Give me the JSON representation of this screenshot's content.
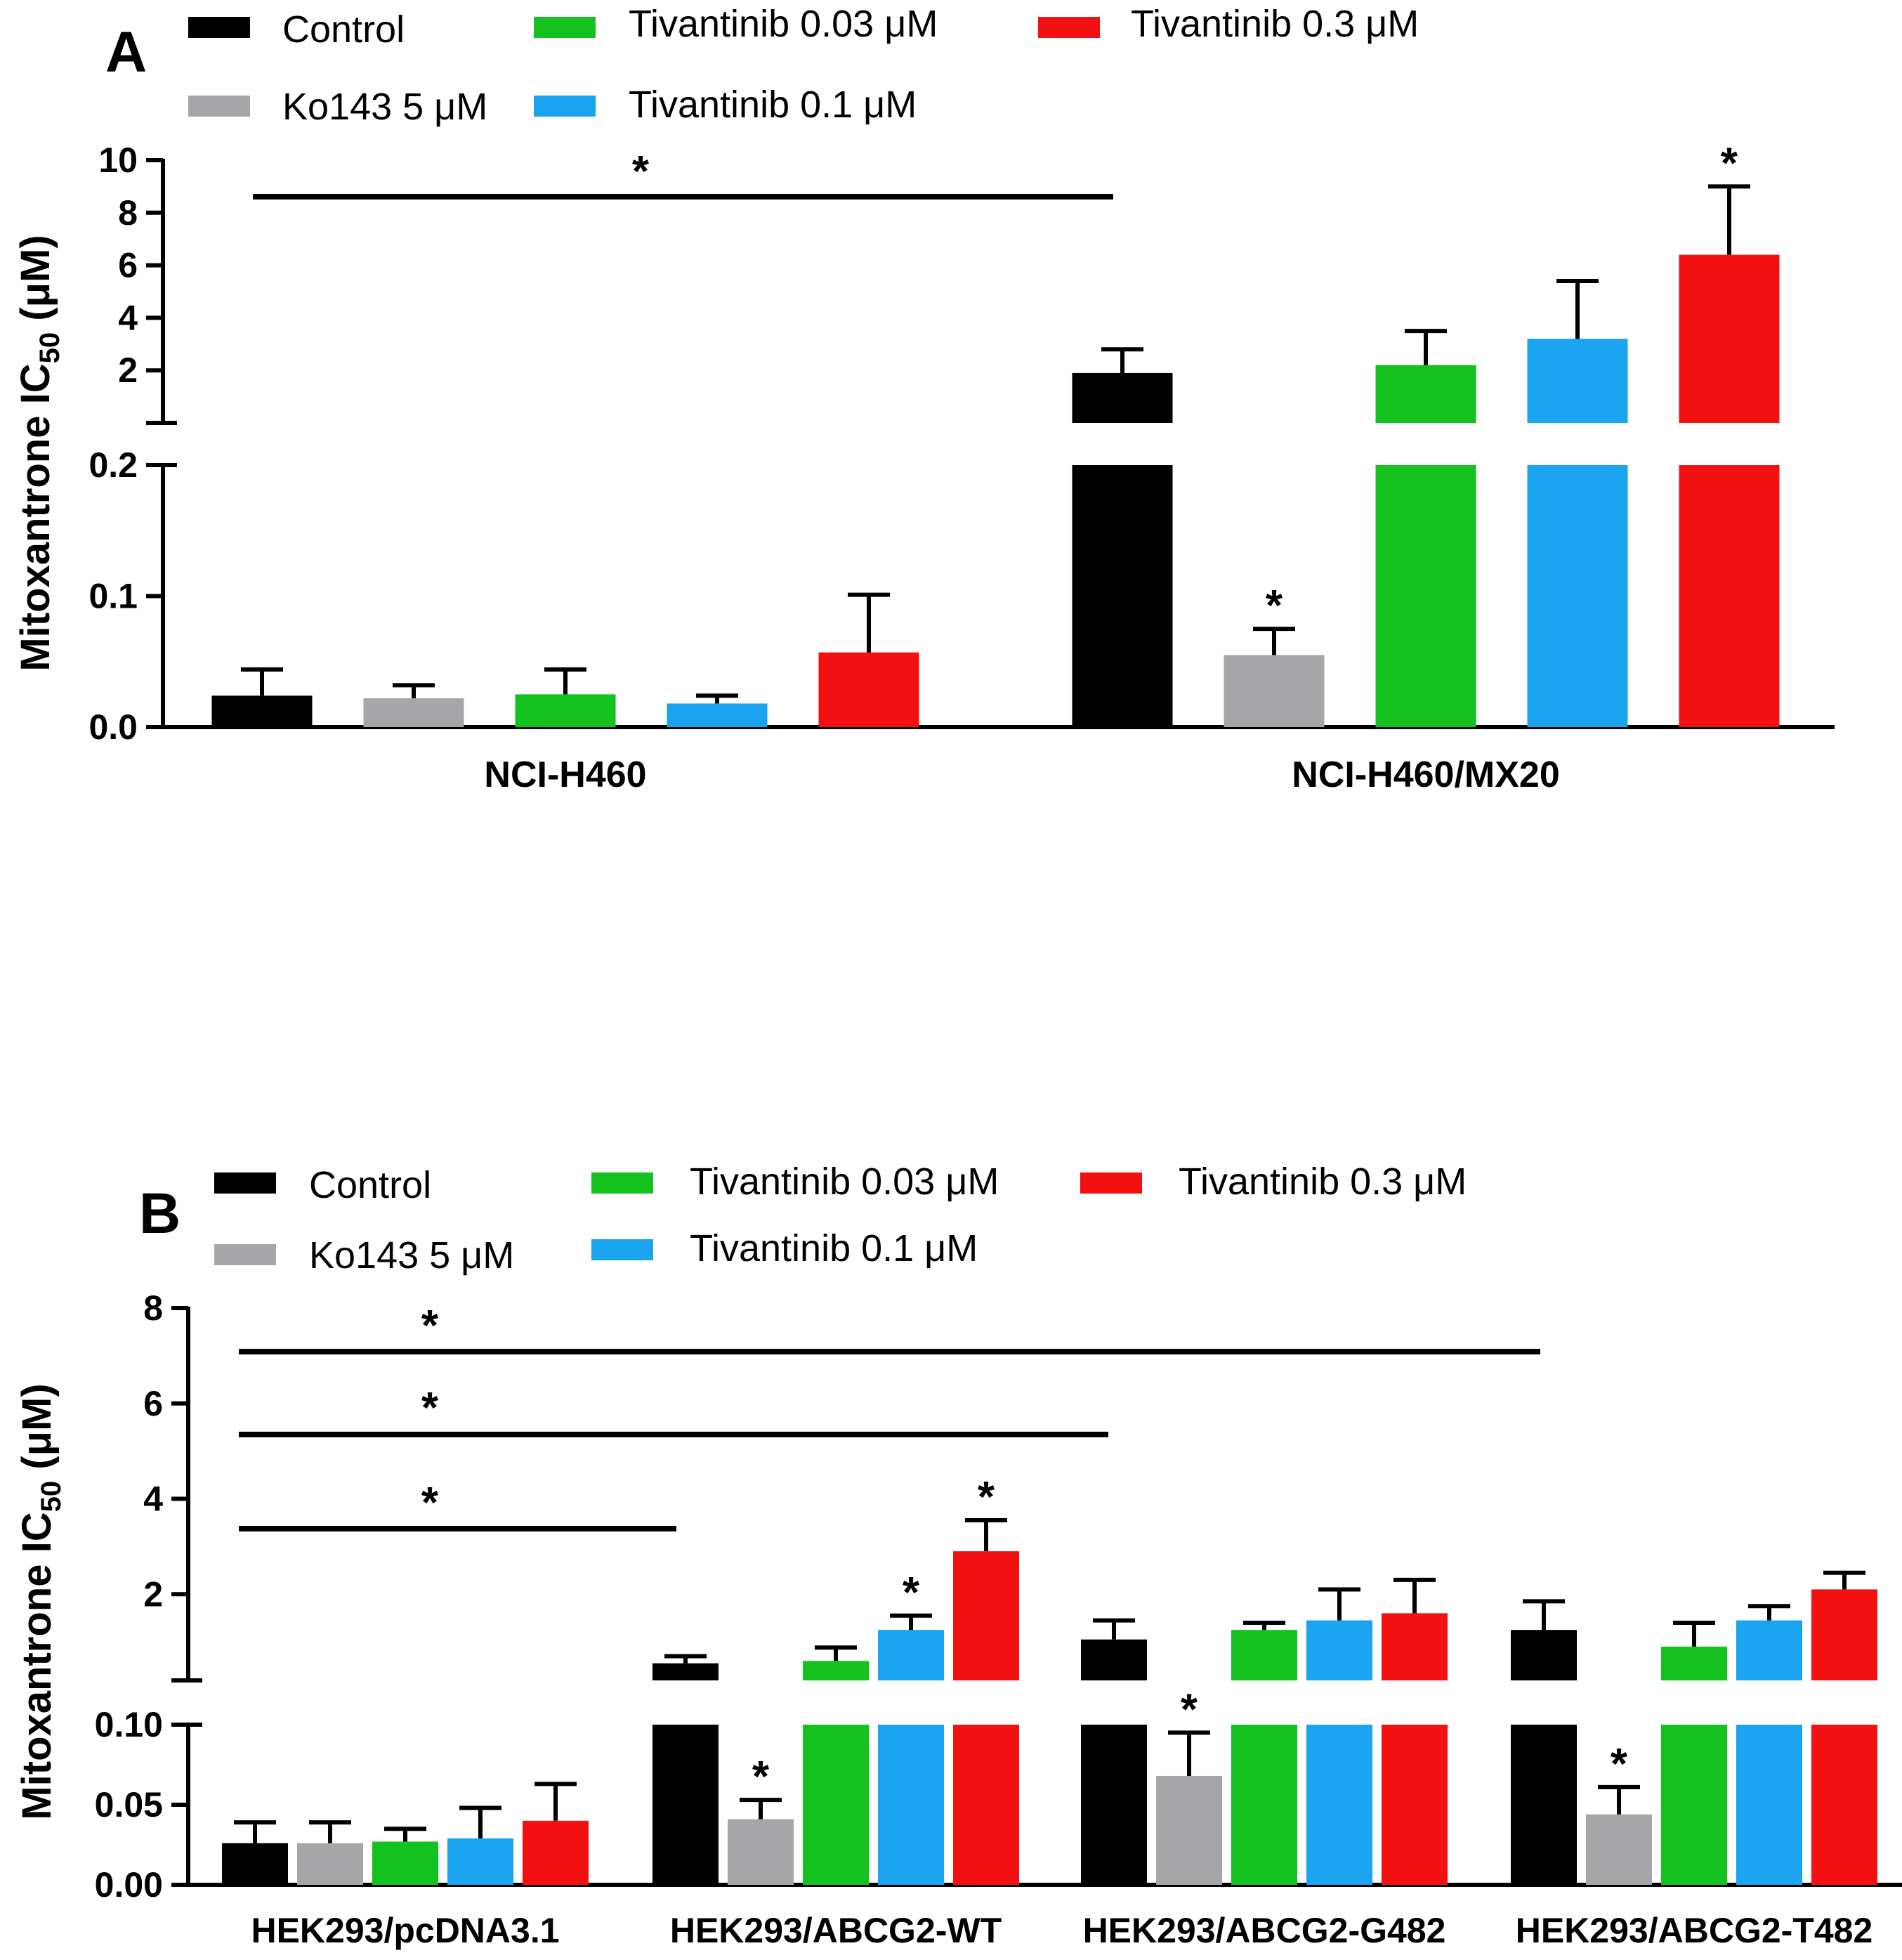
{
  "colors": {
    "control": "#000000",
    "ko143": "#a6a6a8",
    "tiv003": "#13c11f",
    "tiv01": "#1aa3ee",
    "tiv03": "#f21010",
    "axis": "#000000"
  },
  "chart_data": [
    {
      "type": "bar",
      "panel_label": "A",
      "ylabel_main": "Mitoxantrone IC",
      "ylabel_sub": "50",
      "ylabel_unit": " (μM)",
      "legend": [
        {
          "key": "control",
          "label": "Control"
        },
        {
          "key": "ko143",
          "label": "Ko143  5 μM"
        },
        {
          "key": "tiv003",
          "label": "Tivantinib 0.03 μM"
        },
        {
          "key": "tiv01",
          "label": "Tivantinib 0.1 μM"
        },
        {
          "key": "tiv03",
          "label": "Tivantinib  0.3 μM"
        }
      ],
      "axis_break": {
        "lower_max": 0.2,
        "upper_min": 0.2,
        "upper_max": 10
      },
      "lower_ticks": [
        {
          "v": 0.0,
          "label": "0.0"
        },
        {
          "v": 0.1,
          "label": "0.1"
        },
        {
          "v": 0.2,
          "label": "0.2"
        }
      ],
      "upper_ticks": [
        {
          "v": 2,
          "label": "2"
        },
        {
          "v": 4,
          "label": "4"
        },
        {
          "v": 6,
          "label": "6"
        },
        {
          "v": 8,
          "label": "8"
        },
        {
          "v": 10,
          "label": "10"
        }
      ],
      "categories": [
        "NCI-H460",
        "NCI-H460/MX20"
      ],
      "series": [
        {
          "key": "control",
          "values": [
            0.024,
            1.9
          ],
          "errors": [
            0.02,
            0.9
          ],
          "sig": [
            false,
            false
          ]
        },
        {
          "key": "ko143",
          "values": [
            0.022,
            0.055
          ],
          "errors": [
            0.01,
            0.02
          ],
          "sig": [
            false,
            true
          ]
        },
        {
          "key": "tiv003",
          "values": [
            0.025,
            2.2
          ],
          "errors": [
            0.019,
            1.3
          ],
          "sig": [
            false,
            false
          ]
        },
        {
          "key": "tiv01",
          "values": [
            0.018,
            3.2
          ],
          "errors": [
            0.006,
            2.2
          ],
          "sig": [
            false,
            false
          ]
        },
        {
          "key": "tiv03",
          "values": [
            0.057,
            6.4
          ],
          "errors": [
            0.044,
            2.6
          ],
          "sig": [
            false,
            true
          ]
        }
      ],
      "comparisons": [
        {
          "from_category": 0,
          "to_category": 1,
          "star": "*"
        }
      ],
      "significance_mark": "*"
    },
    {
      "type": "bar",
      "panel_label": "B",
      "ylabel_main": "Mitoxantrone IC",
      "ylabel_sub": "50",
      "ylabel_unit": " (μM)",
      "legend": [
        {
          "key": "control",
          "label": "Control"
        },
        {
          "key": "ko143",
          "label": "Ko143  5 μM"
        },
        {
          "key": "tiv003",
          "label": "Tivantinib 0.03 μM"
        },
        {
          "key": "tiv01",
          "label": "Tivantinib  0.1 μM"
        },
        {
          "key": "tiv03",
          "label": "Tivantinib  0.3 μM"
        }
      ],
      "axis_break": {
        "lower_max": 0.1,
        "upper_min": 0.1,
        "upper_max": 8
      },
      "lower_ticks": [
        {
          "v": 0.0,
          "label": "0.00"
        },
        {
          "v": 0.05,
          "label": "0.05"
        },
        {
          "v": 0.1,
          "label": "0.10"
        }
      ],
      "upper_ticks": [
        {
          "v": 2,
          "label": "2"
        },
        {
          "v": 4,
          "label": "4"
        },
        {
          "v": 6,
          "label": "6"
        },
        {
          "v": 8,
          "label": "8"
        }
      ],
      "categories": [
        "HEK293/pcDNA3.1",
        "HEK293/ABCG2-WT",
        "HEK293/ABCG2-G482",
        "HEK293/ABCG2-T482"
      ],
      "series": [
        {
          "key": "control",
          "values": [
            0.026,
            0.55,
            1.05,
            1.25
          ],
          "errors": [
            0.013,
            0.15,
            0.4,
            0.6
          ],
          "sig": [
            false,
            false,
            false,
            false
          ]
        },
        {
          "key": "ko143",
          "values": [
            0.026,
            0.041,
            0.068,
            0.044
          ],
          "errors": [
            0.013,
            0.012,
            0.027,
            0.017
          ],
          "sig": [
            false,
            true,
            true,
            true
          ]
        },
        {
          "key": "tiv003",
          "values": [
            0.027,
            0.6,
            1.25,
            0.9
          ],
          "errors": [
            0.008,
            0.28,
            0.15,
            0.5
          ],
          "sig": [
            false,
            false,
            false,
            false
          ]
        },
        {
          "key": "tiv01",
          "values": [
            0.029,
            1.25,
            1.45,
            1.45
          ],
          "errors": [
            0.019,
            0.3,
            0.65,
            0.3
          ],
          "sig": [
            false,
            true,
            false,
            false
          ]
        },
        {
          "key": "tiv03",
          "values": [
            0.04,
            2.9,
            1.6,
            2.1
          ],
          "errors": [
            0.023,
            0.65,
            0.7,
            0.35
          ],
          "sig": [
            false,
            true,
            false,
            false
          ]
        }
      ],
      "comparisons": [
        {
          "from_category": 0,
          "to_category": 1,
          "star": "*"
        },
        {
          "from_category": 0,
          "to_category": 2,
          "star": "*"
        },
        {
          "from_category": 0,
          "to_category": 3,
          "star": "*"
        }
      ],
      "significance_mark": "*"
    }
  ]
}
